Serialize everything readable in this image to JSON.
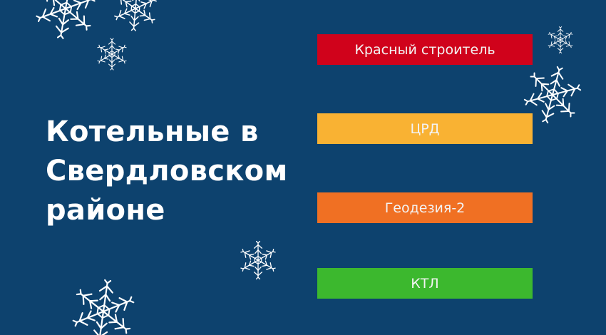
{
  "title": {
    "lines": [
      "Котельные в",
      "Свердловском",
      "районе"
    ]
  },
  "buttons": [
    {
      "label": "Красный строитель",
      "color": "#d0021b"
    },
    {
      "label": "ЦРД",
      "color": "#f9b233"
    },
    {
      "label": "Геодезия-2",
      "color": "#f07023"
    },
    {
      "label": "КТЛ",
      "color": "#3cb82e"
    }
  ],
  "colors": {
    "background": "#0d426e",
    "snowflake": "#ffffff"
  },
  "decorations": {
    "icon": "snowflake-icon"
  }
}
